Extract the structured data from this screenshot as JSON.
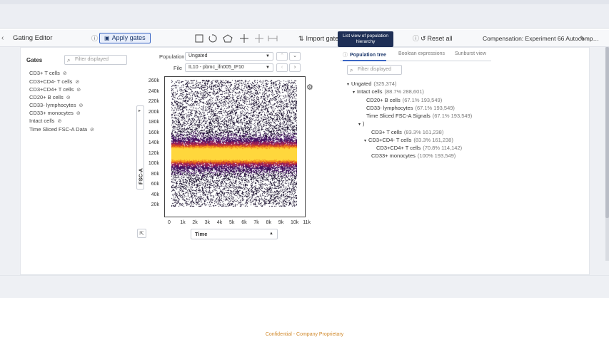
{
  "toolbar": {
    "title": "Gating Editor",
    "apply_gates": "Apply gates",
    "import_gates": "Import gates",
    "reset_all": "Reset all",
    "compensation": "Compensation: Experiment 66 Autocomp…",
    "tooltip_line1": "List view of population",
    "tooltip_line2": "hierarchy"
  },
  "gates": {
    "title": "Gates",
    "filter_placeholder": "Filter displayed",
    "items": [
      "CD3+ T cells",
      "CD3+CD4- T cells",
      "CD3+CD4+ T cells",
      "CD20+ B cells",
      "CD33- lymphocytes",
      "CD33+ monocytes",
      "Intact cells",
      "Time Sliced FSC-A Data"
    ]
  },
  "plot": {
    "population_label": "Population",
    "population_value": "Ungated",
    "file_label": "File",
    "file_value": "IL10 - pbmc_ifn005_IF10",
    "y_axis_label": "FSC-A",
    "x_axis_label": "Time",
    "y_ticks": [
      "260k",
      "240k",
      "220k",
      "200k",
      "180k",
      "160k",
      "140k",
      "120k",
      "100k",
      "80k",
      "60k",
      "40k",
      "20k"
    ],
    "x_ticks": [
      "0",
      "1k",
      "2k",
      "3k",
      "4k",
      "5k",
      "6k",
      "7k",
      "8k",
      "9k",
      "10k",
      "11k"
    ]
  },
  "chart_data": {
    "type": "heatmap",
    "title": "",
    "xlabel": "Time",
    "ylabel": "FSC-A",
    "xlim": [
      0,
      11000
    ],
    "ylim": [
      20000,
      260000
    ],
    "density_peak_y": 120000,
    "colors": [
      "#ffffff",
      "#1a0a3a",
      "#5a1a6e",
      "#c23a3a",
      "#f07a1a",
      "#ffd23a"
    ]
  },
  "tabs": {
    "population_tree": "Population tree",
    "boolean": "Boolean expressions",
    "sunburst": "Sunburst view"
  },
  "tree": {
    "filter_placeholder": "Filter displayed",
    "rows": [
      {
        "label": "Ungated",
        "stat": "(325,374)",
        "toggle": "▾"
      },
      {
        "label": "Intact cells",
        "stat": "(88.7%  288,601)",
        "toggle": "▾"
      },
      {
        "label": "CD20+ B cells",
        "stat": "(67.1%  193,549)",
        "toggle": ""
      },
      {
        "label": "CD33- lymphocytes",
        "stat": "(67.1%  193,549)",
        "toggle": ""
      },
      {
        "label": "Time Sliced FSC-A Signals",
        "stat": "(67.1%  193,549)",
        "toggle": ""
      },
      {
        "label": ")",
        "stat": "",
        "toggle": "▾"
      },
      {
        "label": "CD3+ T cells",
        "stat": "(83.3%  161,238)",
        "toggle": ""
      },
      {
        "label": "CD3+CD4- T cells",
        "stat": "(83.3%  161,238)",
        "toggle": "▾"
      },
      {
        "label": "CD3+CD4+ T cells",
        "stat": "(70.8%  114,142)",
        "toggle": ""
      },
      {
        "label": "CD33+ monocytes",
        "stat": "(100%  193,549)",
        "toggle": ""
      }
    ]
  },
  "footer": "Confidential - Company Proprietary"
}
